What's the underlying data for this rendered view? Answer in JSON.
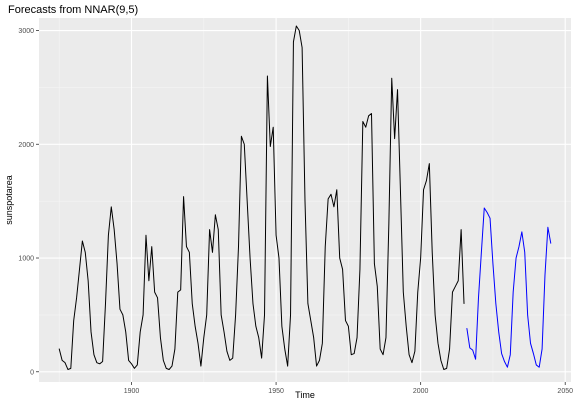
{
  "chart_data": {
    "type": "line",
    "title": "Forecasts from NNAR(9,5)",
    "xlabel": "Time",
    "ylabel": "sunspotarea",
    "xlim": [
      1868,
      2052
    ],
    "ylim": [
      -90,
      3110
    ],
    "x_ticks": [
      {
        "value": 1900,
        "label": "1900"
      },
      {
        "value": 1950,
        "label": "1950"
      },
      {
        "value": 2000,
        "label": "2000"
      },
      {
        "value": 2050,
        "label": "2050"
      }
    ],
    "y_ticks": [
      {
        "value": 0,
        "label": "0"
      },
      {
        "value": 1000,
        "label": "1000"
      },
      {
        "value": 2000,
        "label": "2000"
      },
      {
        "value": 3000,
        "label": "3000"
      }
    ],
    "grid": true,
    "background": "#ebebeb",
    "series": [
      {
        "name": "",
        "color": "#000000",
        "x": [
          1875,
          1876,
          1877,
          1878,
          1879,
          1880,
          1881,
          1882,
          1883,
          1884,
          1885,
          1886,
          1887,
          1888,
          1889,
          1890,
          1891,
          1892,
          1893,
          1894,
          1895,
          1896,
          1897,
          1898,
          1899,
          1900,
          1901,
          1902,
          1903,
          1904,
          1905,
          1906,
          1907,
          1908,
          1909,
          1910,
          1911,
          1912,
          1913,
          1914,
          1915,
          1916,
          1917,
          1918,
          1919,
          1920,
          1921,
          1922,
          1923,
          1924,
          1925,
          1926,
          1927,
          1928,
          1929,
          1930,
          1931,
          1932,
          1933,
          1934,
          1935,
          1936,
          1937,
          1938,
          1939,
          1940,
          1941,
          1942,
          1943,
          1944,
          1945,
          1946,
          1947,
          1948,
          1949,
          1950,
          1951,
          1952,
          1953,
          1954,
          1955,
          1956,
          1957,
          1958,
          1959,
          1960,
          1961,
          1962,
          1963,
          1964,
          1965,
          1966,
          1967,
          1968,
          1969,
          1970,
          1971,
          1972,
          1973,
          1974,
          1975,
          1976,
          1977,
          1978,
          1979,
          1980,
          1981,
          1982,
          1983,
          1984,
          1985,
          1986,
          1987,
          1988,
          1989,
          1990,
          1991,
          1992,
          1993,
          1994,
          1995,
          1996,
          1997,
          1998,
          1999,
          2000,
          2001,
          2002,
          2003,
          2004,
          2005,
          2006,
          2007,
          2008,
          2009,
          2010,
          2011,
          2012,
          2013,
          2014,
          2015
        ],
        "values": [
          200,
          100,
          80,
          20,
          30,
          450,
          650,
          900,
          1150,
          1050,
          800,
          350,
          150,
          80,
          70,
          90,
          600,
          1200,
          1450,
          1250,
          950,
          550,
          500,
          350,
          100,
          70,
          30,
          60,
          350,
          500,
          1200,
          800,
          1100,
          700,
          650,
          300,
          100,
          30,
          20,
          50,
          200,
          700,
          720,
          1540,
          1100,
          1050,
          600,
          400,
          250,
          50,
          300,
          500,
          1250,
          1050,
          1380,
          1250,
          500,
          350,
          180,
          100,
          120,
          500,
          1100,
          2070,
          2000,
          1500,
          1000,
          600,
          400,
          300,
          120,
          500,
          2600,
          1980,
          2150,
          1200,
          1000,
          400,
          200,
          50,
          500,
          2900,
          3040,
          3000,
          2850,
          1500,
          600,
          450,
          300,
          50,
          100,
          250,
          1100,
          1520,
          1560,
          1450,
          1600,
          1000,
          900,
          450,
          400,
          150,
          160,
          300,
          900,
          2200,
          2150,
          2250,
          2270,
          950,
          750,
          200,
          150,
          300,
          1300,
          2580,
          2050,
          2480,
          1600,
          700,
          400,
          150,
          80,
          180,
          700,
          1000,
          1600,
          1680,
          1830,
          1050,
          500,
          250,
          100,
          20,
          30,
          200,
          700,
          750,
          800,
          1250,
          600
        ]
      },
      {
        "name": "",
        "color": "#0000ff",
        "x": [
          2016,
          2017,
          2018,
          2019,
          2020,
          2021,
          2022,
          2023,
          2024,
          2025,
          2026,
          2027,
          2028,
          2029,
          2030,
          2031,
          2032,
          2033,
          2034,
          2035,
          2036,
          2037,
          2038,
          2039,
          2040,
          2041,
          2042,
          2043,
          2044,
          2045
        ],
        "values": [
          380,
          210,
          190,
          110,
          650,
          1050,
          1440,
          1400,
          1350,
          950,
          600,
          350,
          160,
          90,
          40,
          150,
          700,
          1000,
          1100,
          1230,
          1050,
          500,
          250,
          160,
          60,
          40,
          200,
          850,
          1270,
          1130
        ]
      }
    ]
  }
}
